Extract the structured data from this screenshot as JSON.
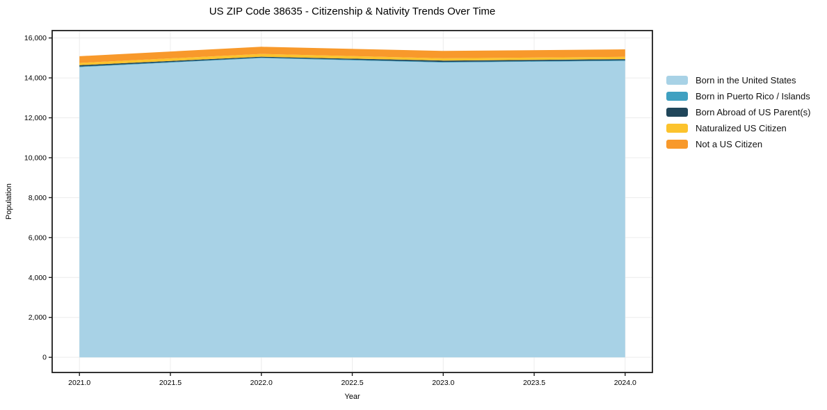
{
  "chart_data": {
    "type": "area",
    "stacked": true,
    "title": "US ZIP Code 38635 - Citizenship & Nativity Trends Over Time",
    "xlabel": "Year",
    "ylabel": "Population",
    "x": [
      2021,
      2022,
      2023,
      2024
    ],
    "series": [
      {
        "name": "Born in the United States",
        "color": "#a8d2e6",
        "values": [
          14540,
          14990,
          14770,
          14850
        ]
      },
      {
        "name": "Born in Puerto Rico / Islands",
        "color": "#3fa0c1",
        "values": [
          30,
          25,
          30,
          30
        ]
      },
      {
        "name": "Born Abroad of US Parent(s)",
        "color": "#20465a",
        "values": [
          65,
          45,
          65,
          60
        ]
      },
      {
        "name": "Naturalized US Citizen",
        "color": "#fcc32d",
        "values": [
          115,
          140,
          115,
          115
        ]
      },
      {
        "name": "Not a US Citizen",
        "color": "#f8992b",
        "values": [
          335,
          360,
          370,
          375
        ]
      }
    ],
    "totals": [
      15085,
      15560,
      15350,
      15430
    ],
    "xticks": {
      "values": [
        2021.0,
        2021.5,
        2022.0,
        2022.5,
        2023.0,
        2023.5,
        2024.0
      ],
      "labels": [
        "2021.0",
        "2021.5",
        "2022.0",
        "2022.5",
        "2023.0",
        "2023.5",
        "2024.0"
      ]
    },
    "yticks": {
      "values": [
        0,
        2000,
        4000,
        6000,
        8000,
        10000,
        12000,
        14000,
        16000
      ],
      "labels": [
        "0",
        "2,000",
        "4,000",
        "6,000",
        "8,000",
        "10,000",
        "12,000",
        "14,000",
        "16,000"
      ]
    },
    "xlim": [
      2020.85,
      2024.15
    ],
    "ylim": [
      -760,
      16370
    ],
    "grid": true,
    "legend_position": "right",
    "colors": {
      "grid": "#ececec",
      "frame": "#1c1c1c",
      "tick_text": "#000000",
      "background": "#ffffff"
    }
  }
}
